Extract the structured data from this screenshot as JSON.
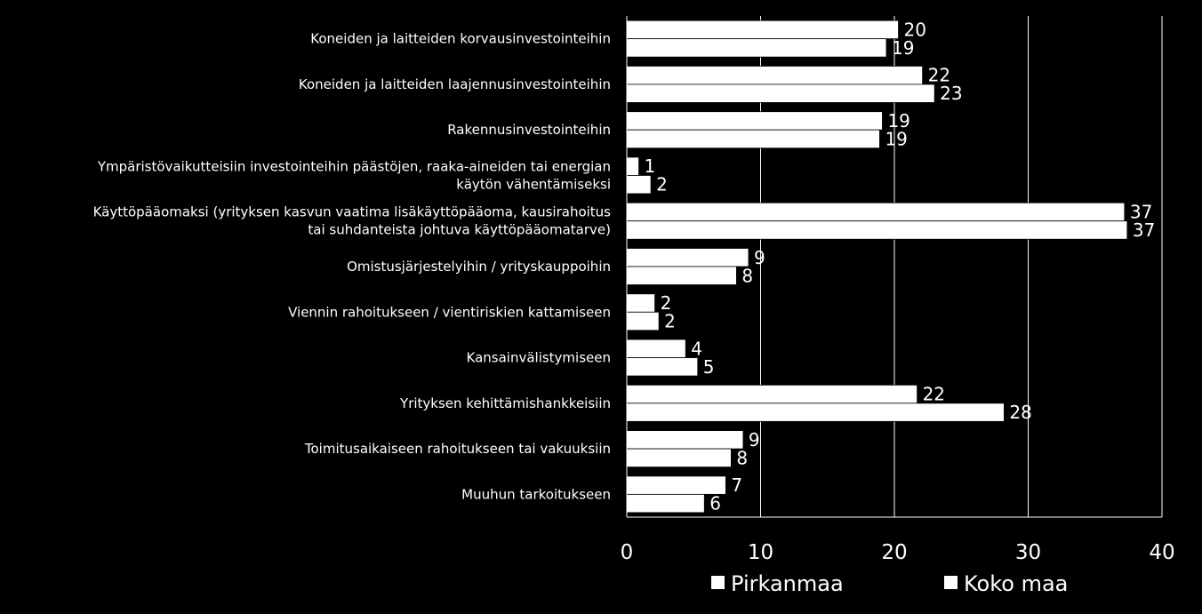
{
  "chart_data": {
    "type": "bar",
    "orientation": "horizontal",
    "title": "",
    "xlabel": "",
    "ylabel": "",
    "xlim": [
      0,
      40
    ],
    "ticks": [
      0,
      10,
      20,
      30,
      40
    ],
    "grid": "vertical",
    "legend_position": "bottom",
    "categories": [
      [
        "Koneiden ja laitteiden korvausinvestointeihin"
      ],
      [
        "Koneiden ja laitteiden laajennusinvestointeihin"
      ],
      [
        "Rakennusinvestointeihin"
      ],
      [
        "Ympäristövaikutteisiin investointeihin päästöjen, raaka-aineiden tai energian",
        "käytön vähentämiseksi"
      ],
      [
        "Käyttöpääomaksi (yrityksen kasvun vaatima lisäkäyttöpääoma, kausirahoitus",
        "tai suhdanteista johtuva käyttöpääomatarve)"
      ],
      [
        "Omistusjärjestelyihin / yrityskauppoihin"
      ],
      [
        "Viennin rahoitukseen / vientiriskien kattamiseen"
      ],
      [
        "Kansainvälistymiseen"
      ],
      [
        "Yrityksen kehittämishankkeisiin"
      ],
      [
        "Toimitusaikaiseen rahoitukseen tai vakuuksiin"
      ],
      [
        "Muuhun tarkoitukseen"
      ]
    ],
    "series": [
      {
        "name": "Pirkanmaa",
        "values": [
          20.3,
          22.1,
          19.1,
          0.9,
          37.2,
          9.1,
          2.1,
          4.4,
          21.7,
          8.7,
          7.4
        ],
        "labels": [
          "20",
          "22",
          "19",
          "1",
          "37",
          "9",
          "2",
          "4",
          "22",
          "9",
          "7"
        ]
      },
      {
        "name": "Koko maa",
        "values": [
          19.4,
          23.0,
          18.9,
          1.8,
          37.4,
          8.2,
          2.4,
          5.3,
          28.2,
          7.8,
          5.8
        ],
        "labels": [
          "19",
          "23",
          "19",
          "2",
          "37",
          "8",
          "2",
          "5",
          "28",
          "8",
          "6"
        ]
      }
    ],
    "colors": {
      "background": "#000000",
      "bar": "#ffffff",
      "bar_stroke": "#000000",
      "text": "#ffffff",
      "axis": "#ffffff",
      "grid": "#ffffff"
    }
  }
}
